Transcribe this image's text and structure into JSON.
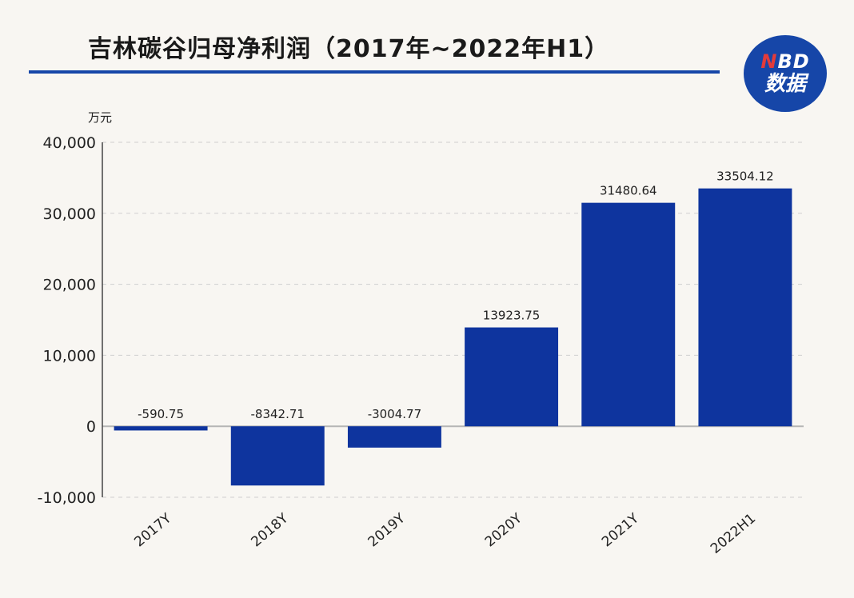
{
  "title": "吉林碳谷归母净利润（2017年~2022年H1）",
  "logo": {
    "line1": "NBD",
    "line2": "数据"
  },
  "colors": {
    "bar": "#0e349e",
    "accent": "#1646a8",
    "grid": "#cfcfcf"
  },
  "chart_data": {
    "type": "bar",
    "title": "吉林碳谷归母净利润（2017年~2022年H1）",
    "unit": "万元",
    "categories": [
      "2017Y",
      "2018Y",
      "2019Y",
      "2020Y",
      "2021Y",
      "2022H1"
    ],
    "values": [
      -590.75,
      -8342.71,
      -3004.77,
      13923.75,
      31480.64,
      33504.12
    ],
    "value_labels": [
      "-590.75",
      "-8342.71",
      "-3004.77",
      "13923.75",
      "31480.64",
      "33504.12"
    ],
    "yticks": [
      40000,
      30000,
      20000,
      10000,
      0,
      -10000
    ],
    "ytick_labels": [
      "40,000",
      "30,000",
      "20,000",
      "10,000",
      "0",
      "-10,000"
    ],
    "ylim": [
      -10000,
      40000
    ],
    "grid": "dashed horizontal",
    "legend": "none"
  }
}
